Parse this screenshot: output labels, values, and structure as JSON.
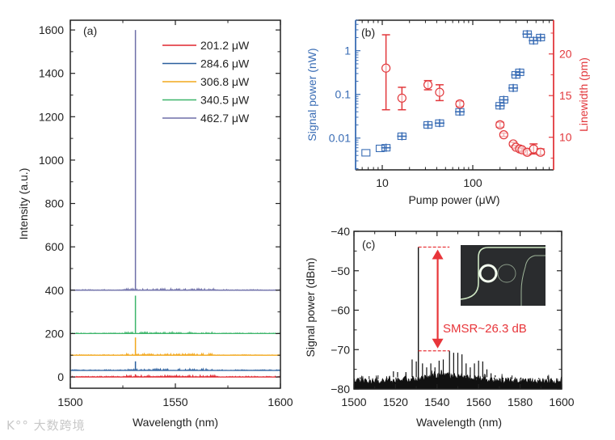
{
  "watermark": "K°° 大数跨境",
  "colors": {
    "axis": "#222222",
    "blue": "#3a6db5",
    "red": "#e2383c",
    "ann": "#e8353a"
  },
  "chart_data": [
    {
      "panel_label": "(a)",
      "type": "line",
      "xlabel": "Wavelength (nm)",
      "ylabel": "Intensity (a.u.)",
      "xlim": [
        1500,
        1600
      ],
      "ylim": [
        -52,
        1645
      ],
      "xticks": [
        "1500",
        "1550",
        "1600"
      ],
      "yticks": [
        "0",
        "200",
        "400",
        "600",
        "800",
        "1000",
        "1200",
        "1400",
        "1600"
      ],
      "legend_position": "top-right",
      "peak_wavelength": 1531,
      "series": [
        {
          "name": "201.2 μW",
          "color": "#e0262e",
          "baseline": 0,
          "peak": 12
        },
        {
          "name": "284.6 μW",
          "color": "#2b5f9e",
          "baseline": 30,
          "peak": 72
        },
        {
          "name": "306.8 μW",
          "color": "#f2a81d",
          "baseline": 100,
          "peak": 182
        },
        {
          "name": "340.5 μW",
          "color": "#3cb56a",
          "baseline": 200,
          "peak": 375
        },
        {
          "name": "462.7 μW",
          "color": "#6e6fa8",
          "baseline": 400,
          "peak": 1600
        }
      ]
    },
    {
      "panel_label": "(b)",
      "type": "scatter",
      "xlabel": "Pump power (μW)",
      "ylabel_left": "Signal power (nW)",
      "ylabel_right": "Linewidth (pm)",
      "xscale": "log",
      "xlim": [
        5.1,
        780
      ],
      "yscale_left": "log",
      "ylim_left": [
        0.0019,
        5
      ],
      "ylim_right": [
        6,
        24
      ],
      "xticks": [
        "10",
        "100"
      ],
      "yticks_left": [
        "0.01",
        "0.1",
        "1"
      ],
      "yticks_right": [
        "10",
        "15",
        "20"
      ],
      "signal_power": [
        {
          "x": 6.6,
          "y": 0.0046,
          "open": true
        },
        {
          "x": 9.5,
          "y": 0.0058,
          "open": true
        },
        {
          "x": 11,
          "y": 0.006
        },
        {
          "x": 16.5,
          "y": 0.011
        },
        {
          "x": 32,
          "y": 0.02
        },
        {
          "x": 43,
          "y": 0.022
        },
        {
          "x": 72,
          "y": 0.04
        },
        {
          "x": 200,
          "y": 0.055
        },
        {
          "x": 220,
          "y": 0.075
        },
        {
          "x": 280,
          "y": 0.14
        },
        {
          "x": 300,
          "y": 0.28
        },
        {
          "x": 330,
          "y": 0.32
        },
        {
          "x": 400,
          "y": 2.4
        },
        {
          "x": 470,
          "y": 1.7
        },
        {
          "x": 560,
          "y": 2.0
        }
      ],
      "linewidth": [
        {
          "x": 11,
          "y": 18.3,
          "lo": 13.3,
          "hi": 22.3
        },
        {
          "x": 16.5,
          "y": 14.7,
          "lo": 13.3,
          "hi": 16.0
        },
        {
          "x": 32,
          "y": 16.3,
          "lo": 15.7,
          "hi": 16.8
        },
        {
          "x": 43,
          "y": 15.4,
          "lo": 14.4,
          "hi": 16.3
        },
        {
          "x": 72,
          "y": 14.0,
          "lo": 13.7,
          "hi": 14.3
        },
        {
          "x": 200,
          "y": 11.5,
          "lo": 11.2,
          "hi": 11.8
        },
        {
          "x": 220,
          "y": 10.3,
          "lo": 10.1,
          "hi": 10.5
        },
        {
          "x": 280,
          "y": 9.2,
          "lo": 9.0,
          "hi": 9.4
        },
        {
          "x": 300,
          "y": 8.8,
          "lo": 8.6,
          "hi": 9.0
        },
        {
          "x": 330,
          "y": 8.6,
          "lo": 8.4,
          "hi": 8.8
        },
        {
          "x": 350,
          "y": 8.5,
          "lo": 8.3,
          "hi": 8.7
        },
        {
          "x": 400,
          "y": 8.2,
          "lo": 7.9,
          "hi": 8.5
        },
        {
          "x": 470,
          "y": 8.6,
          "lo": 8.0,
          "hi": 9.2
        },
        {
          "x": 560,
          "y": 8.2,
          "lo": 7.9,
          "hi": 8.6
        }
      ]
    },
    {
      "panel_label": "(c)",
      "type": "line",
      "xlabel": "Wavelength (nm)",
      "ylabel": "Signal power (dBm)",
      "xlim": [
        1500,
        1600
      ],
      "ylim": [
        -80,
        -40
      ],
      "xticks": [
        "1500",
        "1520",
        "1540",
        "1560",
        "1580",
        "1600"
      ],
      "yticks": [
        "-80",
        "-70",
        "-60",
        "-50",
        "-40"
      ],
      "main_peak": {
        "x": 1531,
        "y": -44
      },
      "noise_floor": -78,
      "side_modes": [
        [
          1519,
          -75.5
        ],
        [
          1521,
          -75.7
        ],
        [
          1525,
          -75.7
        ],
        [
          1528,
          -72.5
        ],
        [
          1530,
          -73
        ],
        [
          1533,
          -73.5
        ],
        [
          1535,
          -74.5
        ],
        [
          1537,
          -73.5
        ],
        [
          1539,
          -74.5
        ],
        [
          1541,
          -72.8
        ],
        [
          1543,
          -72.5
        ],
        [
          1546,
          -70.3
        ],
        [
          1548,
          -70.8
        ],
        [
          1550,
          -70.8
        ],
        [
          1552,
          -71.2
        ],
        [
          1554,
          -73.5
        ],
        [
          1556,
          -74.5
        ],
        [
          1558,
          -73.5
        ],
        [
          1560,
          -72.8
        ],
        [
          1562,
          -73
        ],
        [
          1564,
          -75
        ],
        [
          1566,
          -76
        ],
        [
          1568,
          -76.5
        ]
      ],
      "annotation": {
        "text": "SMSR~26.3 dB",
        "top": -44,
        "bottom": -70.3
      }
    }
  ]
}
